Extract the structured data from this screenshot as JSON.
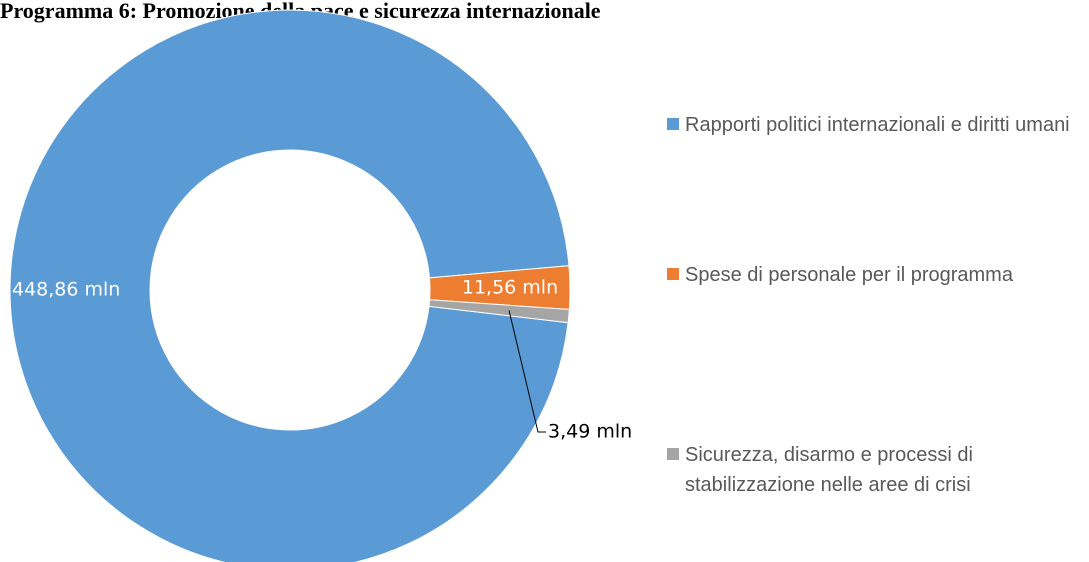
{
  "chart_data": {
    "type": "pie",
    "title": "Programma 6: Promozione della pace e sicurezza internazionale",
    "categories": [
      "Rapporti politici internazionali e diritti umani",
      "Spese di personale per il programma",
      "Sicurezza, disarmo e processi di stabilizzazione nelle aree di crisi"
    ],
    "values": [
      448.86,
      11.56,
      3.49
    ],
    "value_labels": [
      "448,86 mln",
      "11,56 mln",
      "3,49 mln"
    ],
    "colors": [
      "#5b9bd5",
      "#ed7d31",
      "#a5a5a5"
    ],
    "donut": true,
    "legend": "right"
  }
}
